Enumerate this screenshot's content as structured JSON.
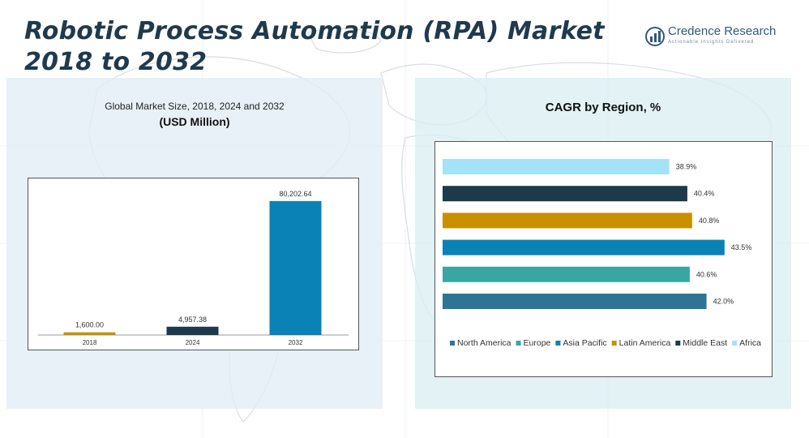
{
  "title": "Robotic Process Automation (RPA) Market 2018 to 2032",
  "logo": {
    "name": "Credence Research",
    "tagline": "Actionable Insights Delivered"
  },
  "colors": {
    "title": "#1f3a4d",
    "north_america": "#2e7595",
    "europe": "#3aa6a3",
    "asia_pacific": "#0b82b6",
    "latin_america": "#c89000",
    "middle_east": "#1c3a4a",
    "africa": "#a4e2f7"
  },
  "chart_data": [
    {
      "type": "bar",
      "title": "Global Market Size, 2018, 2024 and 2032",
      "subtitle": "(USD Million)",
      "categories": [
        "2018",
        "2024",
        "2032"
      ],
      "values": [
        1600.0,
        4957.38,
        80202.64
      ],
      "value_labels": [
        "1,600.00",
        "4,957.38",
        "80,202.64"
      ],
      "bar_colors": [
        "#c89000",
        "#1c3a4a",
        "#0b82b6"
      ],
      "ylim": [
        0,
        85000
      ],
      "xlabel": "",
      "ylabel": ""
    },
    {
      "type": "bar",
      "orientation": "horizontal",
      "title": "CAGR by Region, %",
      "categories": [
        "Africa",
        "Middle East",
        "Latin America",
        "Asia Pacific",
        "Europe",
        "North America"
      ],
      "values": [
        38.9,
        40.4,
        40.8,
        43.5,
        40.6,
        42.0
      ],
      "value_labels": [
        "38.9%",
        "40.4%",
        "40.8%",
        "43.5%",
        "40.6%",
        "42.0%"
      ],
      "bar_colors": [
        "#a4e2f7",
        "#1c3a4a",
        "#c89000",
        "#0b82b6",
        "#3aa6a3",
        "#2e7595"
      ],
      "xlim": [
        20,
        45
      ],
      "legend": [
        "North America",
        "Europe",
        "Asia Pacific",
        "Latin America",
        "Middle East",
        "Africa"
      ],
      "legend_colors": [
        "#2e7595",
        "#3aa6a3",
        "#0b82b6",
        "#c89000",
        "#1c3a4a",
        "#a4e2f7"
      ],
      "legend_position": "bottom"
    }
  ]
}
